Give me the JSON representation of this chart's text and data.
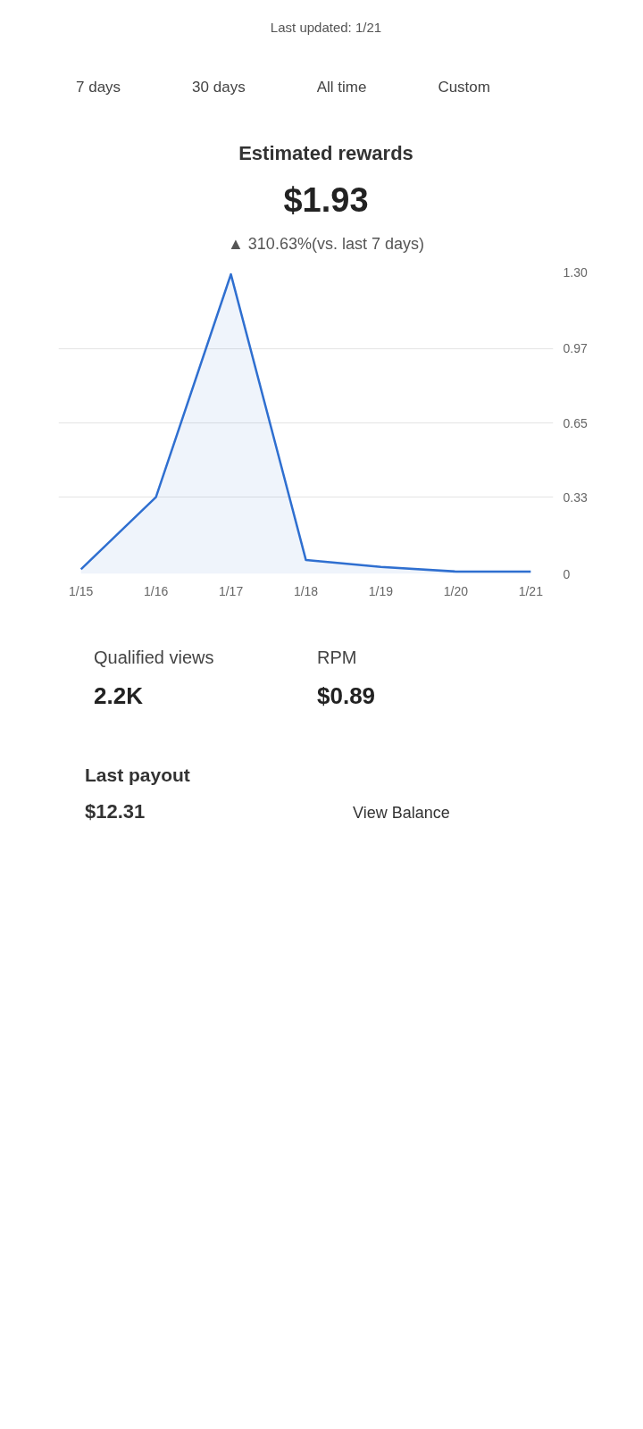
{
  "chart_data": {
    "type": "area",
    "title": "Estimated rewards",
    "subtitle": "$1.93",
    "categories": [
      "1/15",
      "1/16",
      "1/17",
      "1/18",
      "1/19",
      "1/20",
      "1/21"
    ],
    "series": [
      {
        "color": "#2f6fd0",
        "values": [
          0.02,
          0.33,
          1.29,
          0.06,
          0.03,
          0.01,
          0.01
        ]
      }
    ],
    "ylim": [
      0,
      1.3
    ],
    "yticks": [
      0,
      0.33,
      0.65,
      0.97,
      {
        "value": 1.3,
        "label": "1.30"
      }
    ],
    "grid": "y",
    "marker": "none",
    "line_style": "solid",
    "annotations": [
      "Last updated: 1/21",
      "7 days",
      "30 days",
      "All time",
      "Custom",
      "▲ 310.63%(vs. last 7 days)",
      "Qualified views",
      "2.2K",
      "RPM",
      "$0.89",
      "Last payout",
      "$12.31",
      "View Balance"
    ]
  }
}
